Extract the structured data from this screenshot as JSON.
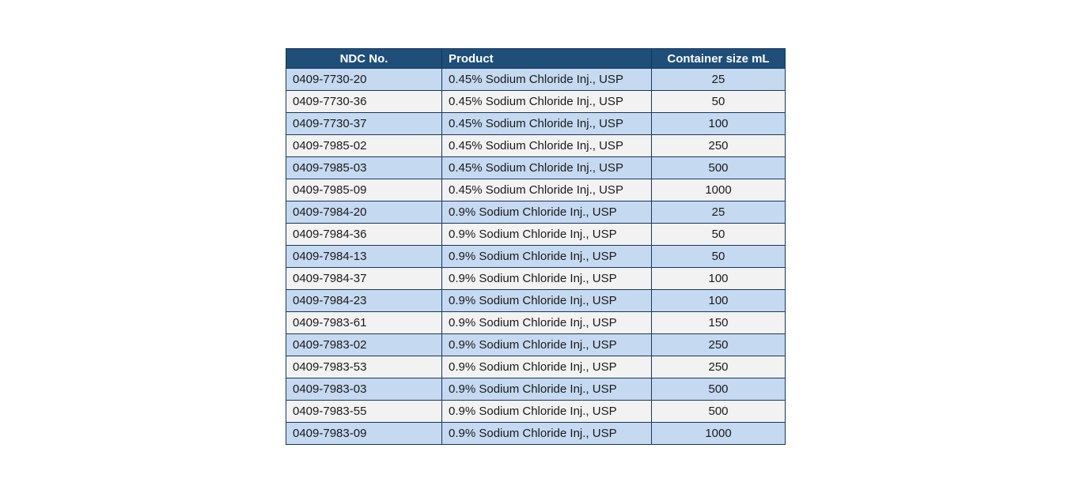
{
  "table": {
    "columns": [
      {
        "label": "NDC No."
      },
      {
        "label": "Product"
      },
      {
        "label": "Container size mL"
      }
    ],
    "rows": [
      [
        "0409-7730-20",
        "0.45% Sodium Chloride Inj., USP",
        "25"
      ],
      [
        "0409-7730-36",
        "0.45% Sodium Chloride Inj., USP",
        "50"
      ],
      [
        "0409-7730-37",
        "0.45% Sodium Chloride Inj., USP",
        "100"
      ],
      [
        "0409-7985-02",
        "0.45% Sodium Chloride Inj., USP",
        "250"
      ],
      [
        "0409-7985-03",
        "0.45% Sodium Chloride Inj., USP",
        "500"
      ],
      [
        "0409-7985-09",
        "0.45% Sodium Chloride Inj., USP",
        "1000"
      ],
      [
        "0409-7984-20",
        "0.9% Sodium Chloride Inj., USP",
        "25"
      ],
      [
        "0409-7984-36",
        "0.9% Sodium Chloride Inj., USP",
        "50"
      ],
      [
        "0409-7984-13",
        "0.9% Sodium Chloride Inj., USP",
        "50"
      ],
      [
        "0409-7984-37",
        "0.9% Sodium Chloride Inj., USP",
        "100"
      ],
      [
        "0409-7984-23",
        "0.9% Sodium Chloride Inj., USP",
        "100"
      ],
      [
        "0409-7983-61",
        "0.9% Sodium Chloride Inj., USP",
        "150"
      ],
      [
        "0409-7983-02",
        "0.9% Sodium Chloride Inj., USP",
        "250"
      ],
      [
        "0409-7983-53",
        "0.9% Sodium Chloride Inj., USP",
        "250"
      ],
      [
        "0409-7983-03",
        "0.9% Sodium Chloride Inj., USP",
        "500"
      ],
      [
        "0409-7983-55",
        "0.9% Sodium Chloride Inj., USP",
        "500"
      ],
      [
        "0409-7983-09",
        "0.9% Sodium Chloride Inj., USP",
        "1000"
      ]
    ],
    "colors": {
      "header_bg": "#1F4E79",
      "header_text": "#FFFFFF",
      "row_alt_blue": "#C5D9F1",
      "row_alt_gray": "#F2F2F2",
      "border": "#17375E"
    }
  }
}
